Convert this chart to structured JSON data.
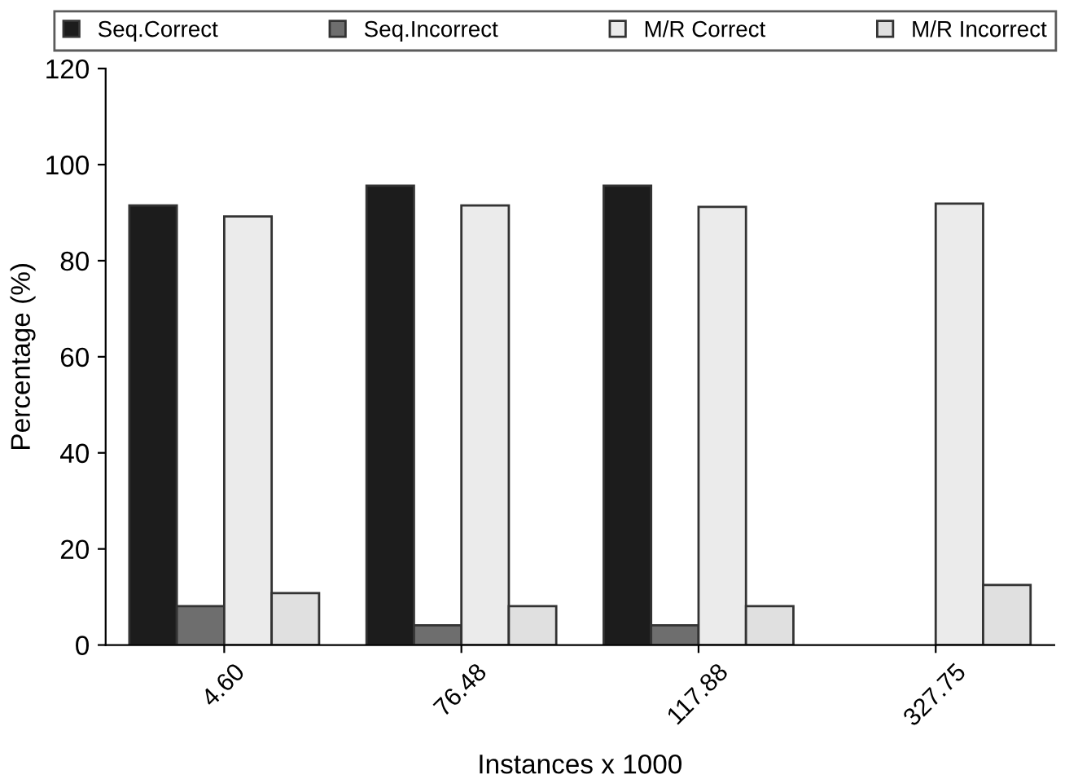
{
  "chart_data": {
    "type": "bar",
    "xlabel": "Instances x 1000",
    "ylabel": "Percentage (%)",
    "categories": [
      "4.60",
      "76.48",
      "117.88",
      "327.75"
    ],
    "series": [
      {
        "name": "Seq.Correct",
        "color": "#1c1c1c",
        "values": [
          91.5,
          95.6,
          95.6,
          null
        ]
      },
      {
        "name": "Seq.Incorrect",
        "color": "#6e6e6e",
        "values": [
          8.1,
          4.1,
          4.1,
          null
        ]
      },
      {
        "name": "M/R Correct",
        "color": "#ebebeb",
        "values": [
          89.2,
          91.5,
          91.2,
          91.9
        ]
      },
      {
        "name": "M/R Incorrect",
        "color": "#e0e0e0",
        "values": [
          10.8,
          8.1,
          8.1,
          12.5
        ]
      }
    ],
    "ylim": [
      0,
      120
    ],
    "yticks": [
      0,
      20,
      40,
      60,
      80,
      100,
      120
    ],
    "grid": false,
    "legend": "top"
  }
}
